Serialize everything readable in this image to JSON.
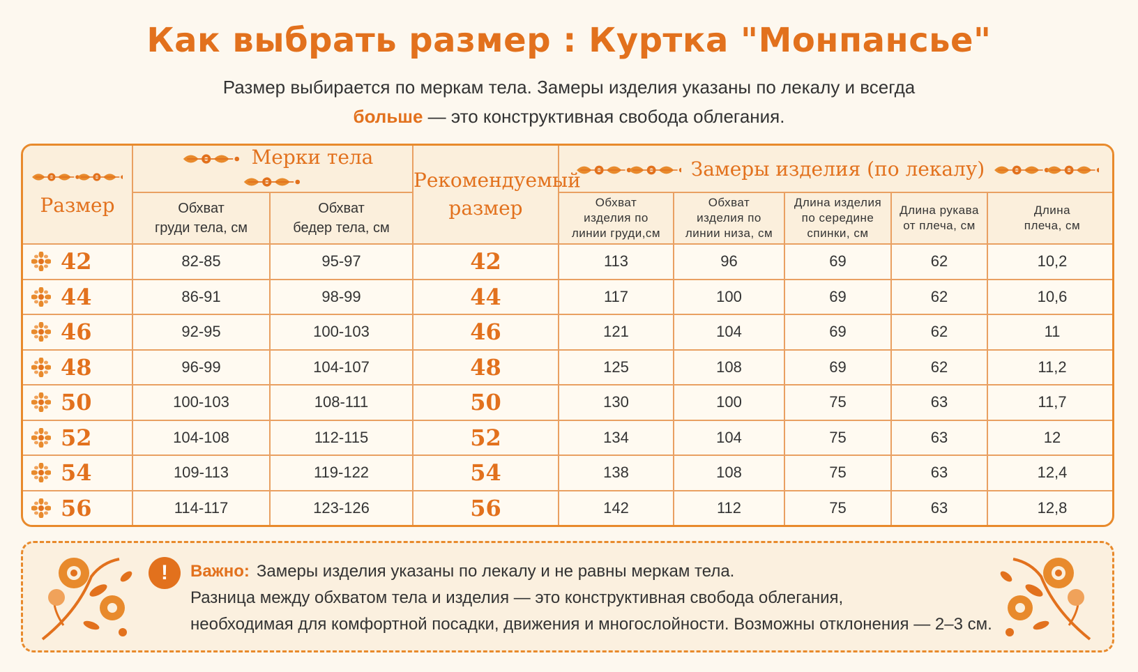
{
  "title": "Как выбрать размер :  Куртка \"Монпансье\"",
  "subtitle": {
    "line1": "Размер выбирается по меркам тела. Замеры изделия указаны по лекалу и всегда",
    "accent": "больше",
    "line2_rest": " — это конструктивная свобода облегания."
  },
  "table": {
    "size_header": "Размер",
    "body_group": "Мерки тела",
    "rec_header_1": "Рекомендуемый",
    "rec_header_2": "размер",
    "garment_group": "Замеры изделия (по лекалу)",
    "body_cols": [
      {
        "l1": "Обхват",
        "l2": "груди тела, см"
      },
      {
        "l1": "Обхват",
        "l2": "бедер тела, см"
      }
    ],
    "garment_cols": [
      {
        "l1": "Обхват",
        "l2": "изделия по",
        "l3": "линии груди,см"
      },
      {
        "l1": "Обхват",
        "l2": "изделия по",
        "l3": "линии низа, см"
      },
      {
        "l1": "Длина изделия",
        "l2": "по середине",
        "l3": "спинки, см"
      },
      {
        "l1": "Длина рукава",
        "l2": "от плеча, см",
        "l3": ""
      },
      {
        "l1": "Длина",
        "l2": "плеча, см",
        "l3": ""
      }
    ],
    "rows": [
      {
        "size": "42",
        "chest": "82-85",
        "hips": "95-97",
        "rec": "42",
        "g_chest": "113",
        "g_bottom": "96",
        "length": "69",
        "sleeve": "62",
        "shoulder": "10,2"
      },
      {
        "size": "44",
        "chest": "86-91",
        "hips": "98-99",
        "rec": "44",
        "g_chest": "117",
        "g_bottom": "100",
        "length": "69",
        "sleeve": "62",
        "shoulder": "10,6"
      },
      {
        "size": "46",
        "chest": "92-95",
        "hips": "100-103",
        "rec": "46",
        "g_chest": "121",
        "g_bottom": "104",
        "length": "69",
        "sleeve": "62",
        "shoulder": "11"
      },
      {
        "size": "48",
        "chest": "96-99",
        "hips": "104-107",
        "rec": "48",
        "g_chest": "125",
        "g_bottom": "108",
        "length": "69",
        "sleeve": "62",
        "shoulder": "11,2"
      },
      {
        "size": "50",
        "chest": "100-103",
        "hips": "108-111",
        "rec": "50",
        "g_chest": "130",
        "g_bottom": "100",
        "length": "75",
        "sleeve": "63",
        "shoulder": "11,7"
      },
      {
        "size": "52",
        "chest": "104-108",
        "hips": "112-115",
        "rec": "52",
        "g_chest": "134",
        "g_bottom": "104",
        "length": "75",
        "sleeve": "63",
        "shoulder": "12"
      },
      {
        "size": "54",
        "chest": "109-113",
        "hips": "119-122",
        "rec": "54",
        "g_chest": "138",
        "g_bottom": "108",
        "length": "75",
        "sleeve": "63",
        "shoulder": "12,4"
      },
      {
        "size": "56",
        "chest": "114-117",
        "hips": "123-126",
        "rec": "56",
        "g_chest": "142",
        "g_bottom": "112",
        "length": "75",
        "sleeve": "63",
        "shoulder": "12,8"
      }
    ]
  },
  "note": {
    "label": "Важно:",
    "line1": "Замеры изделия указаны по лекалу и не равны меркам тела.",
    "line2": "Разница между обхватом тела и изделия — это конструктивная свобода облегания,",
    "line3": "необходимая для комфортной посадки, движения и многослойности. Возможны отклонения — 2–3 см."
  },
  "colors": {
    "accent": "#e2711d",
    "border": "#e88a2c",
    "background": "#fdf8ef"
  },
  "icons": [
    "flower-ornament-icon",
    "floral-branch-icon",
    "exclamation-icon"
  ]
}
